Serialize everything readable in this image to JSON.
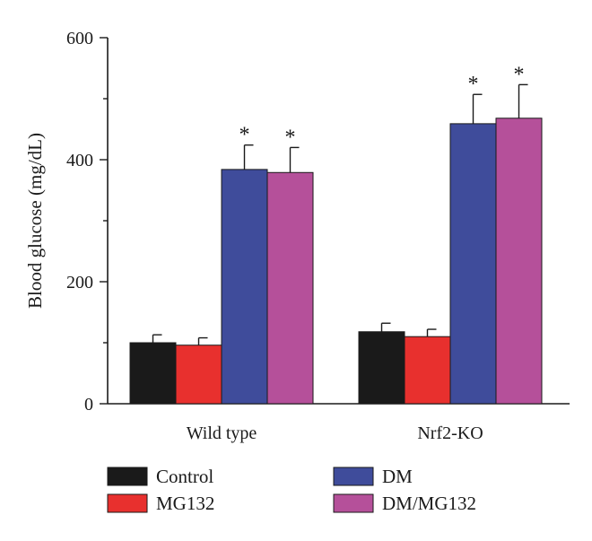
{
  "chart_data": {
    "type": "bar",
    "title": "",
    "xlabel": "",
    "ylabel": "Blood glucose (mg/dL)",
    "ylim": [
      0,
      600
    ],
    "yticks": [
      0,
      200,
      400,
      600
    ],
    "categories": [
      "Wild type",
      "Nrf2-KO"
    ],
    "series": [
      {
        "name": "Control",
        "color": "#1a1a1a",
        "values": [
          100,
          118
        ],
        "errors": [
          13,
          14
        ],
        "significant": [
          false,
          false
        ]
      },
      {
        "name": "MG132",
        "color": "#e8302e",
        "values": [
          96,
          110
        ],
        "errors": [
          12,
          12
        ],
        "significant": [
          false,
          false
        ]
      },
      {
        "name": "DM",
        "color": "#3f4c9b",
        "values": [
          384,
          459
        ],
        "errors": [
          40,
          48
        ],
        "significant": [
          true,
          true
        ]
      },
      {
        "name": "DM/MG132",
        "color": "#b5509a",
        "values": [
          379,
          468
        ],
        "errors": [
          41,
          55
        ],
        "significant": [
          true,
          true
        ]
      }
    ],
    "significance_mark": "*",
    "legend_position": "bottom",
    "grid": false
  }
}
